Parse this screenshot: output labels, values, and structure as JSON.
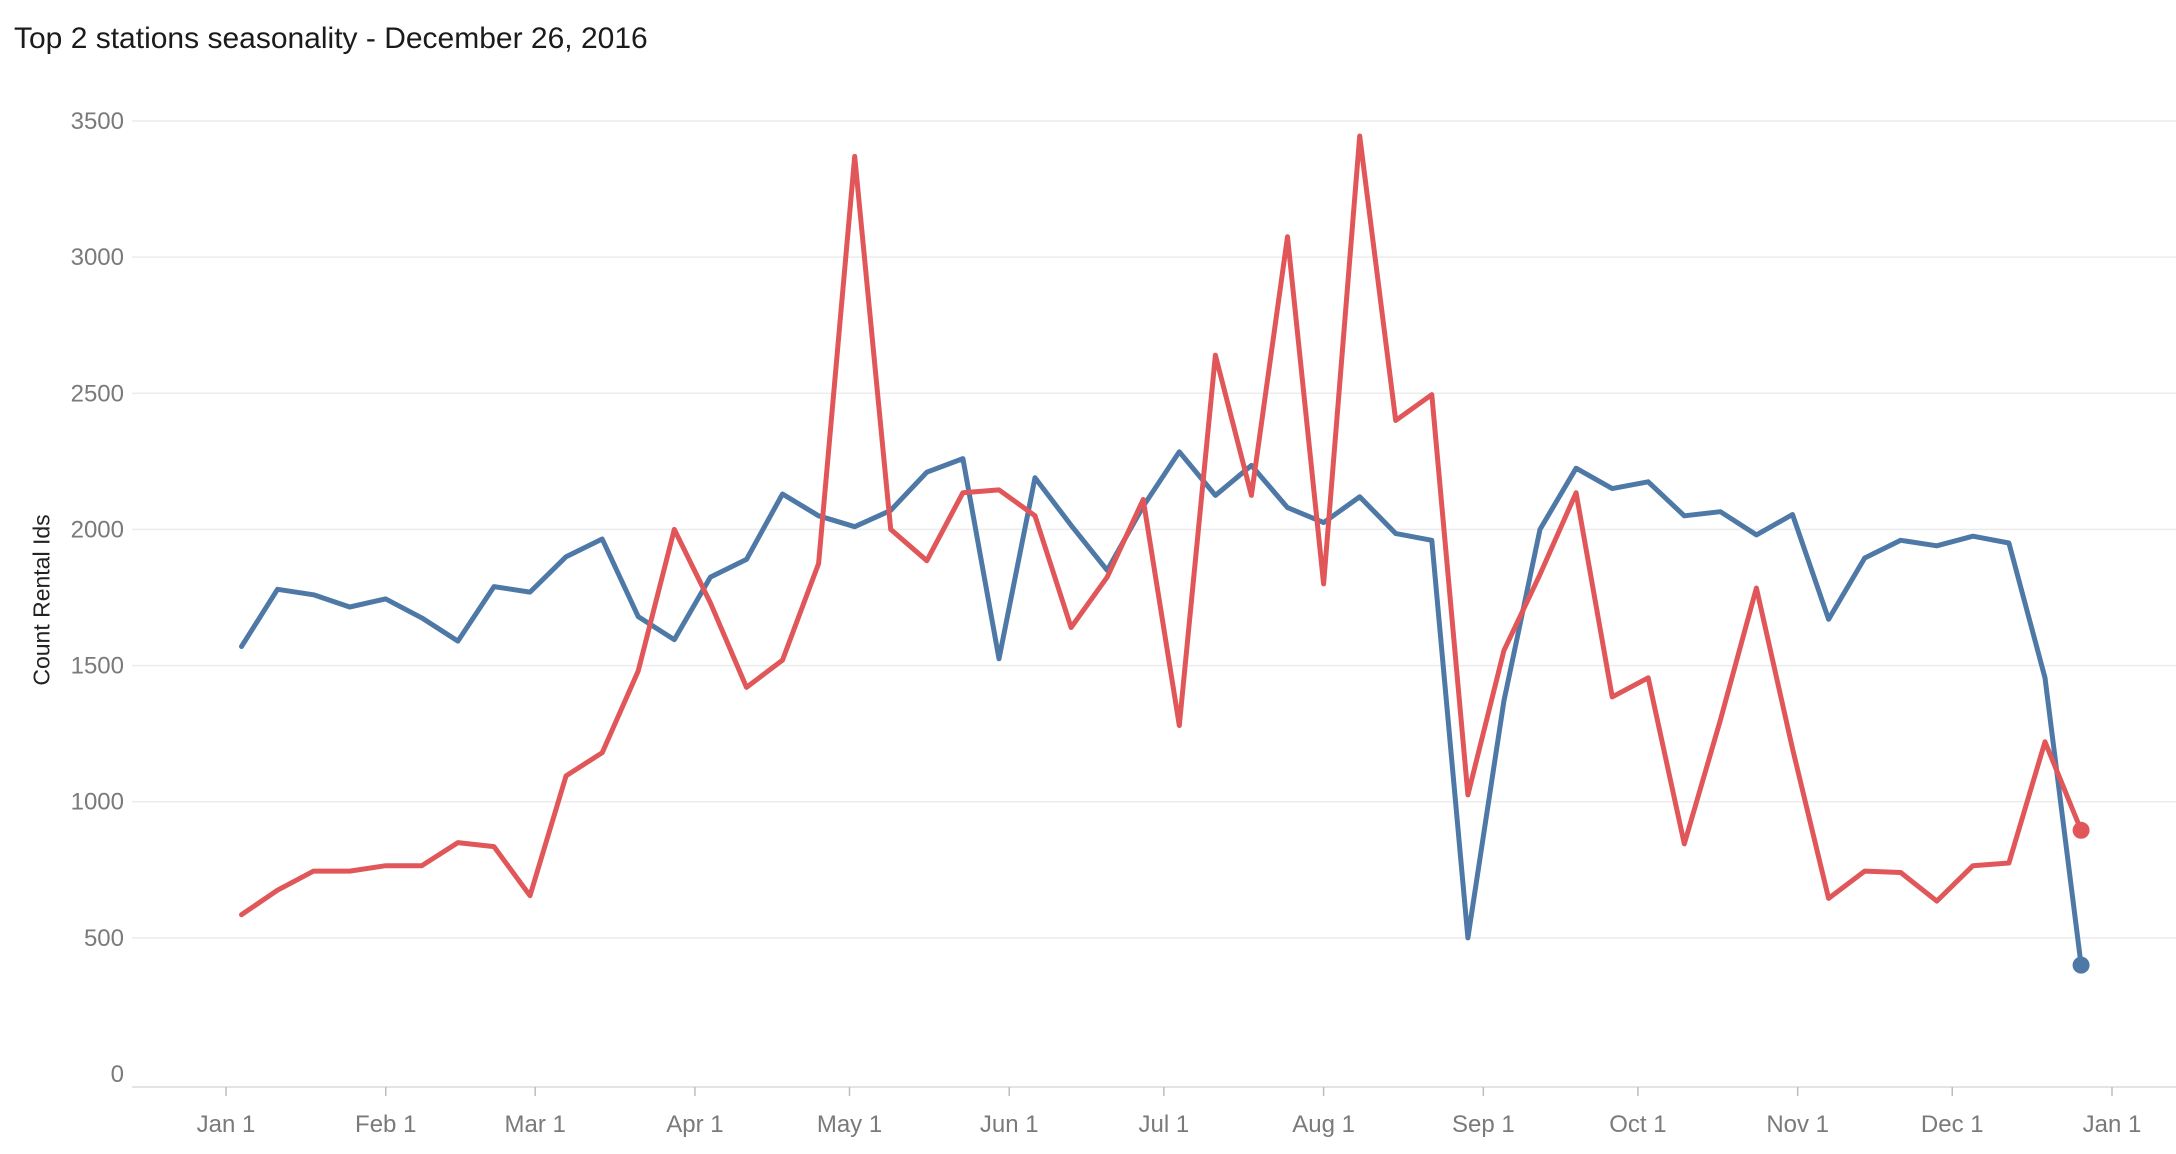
{
  "chart_data": {
    "type": "line",
    "title": "Top 2 stations seasonality - December 26, 2016",
    "ylabel": "Count Rental Ids",
    "xlabel": "",
    "ylim": [
      0,
      3500
    ],
    "yticks": [
      0,
      500,
      1000,
      1500,
      2000,
      2500,
      3000,
      3500
    ],
    "xticks": [
      {
        "date": "2016-01-01",
        "label": "Jan 1"
      },
      {
        "date": "2016-02-01",
        "label": "Feb 1"
      },
      {
        "date": "2016-03-01",
        "label": "Mar 1"
      },
      {
        "date": "2016-04-01",
        "label": "Apr 1"
      },
      {
        "date": "2016-05-01",
        "label": "May 1"
      },
      {
        "date": "2016-06-01",
        "label": "Jun 1"
      },
      {
        "date": "2016-07-01",
        "label": "Jul 1"
      },
      {
        "date": "2016-08-01",
        "label": "Aug 1"
      },
      {
        "date": "2016-09-01",
        "label": "Sep 1"
      },
      {
        "date": "2016-10-01",
        "label": "Oct 1"
      },
      {
        "date": "2016-11-01",
        "label": "Nov 1"
      },
      {
        "date": "2016-12-01",
        "label": "Dec 1"
      },
      {
        "date": "2017-01-01",
        "label": "Jan 1"
      }
    ],
    "grid": true,
    "x": [
      "2016-01-04",
      "2016-01-11",
      "2016-01-18",
      "2016-01-25",
      "2016-02-01",
      "2016-02-08",
      "2016-02-15",
      "2016-02-22",
      "2016-02-29",
      "2016-03-07",
      "2016-03-14",
      "2016-03-21",
      "2016-03-28",
      "2016-04-04",
      "2016-04-11",
      "2016-04-18",
      "2016-04-25",
      "2016-05-02",
      "2016-05-09",
      "2016-05-16",
      "2016-05-23",
      "2016-05-30",
      "2016-06-06",
      "2016-06-13",
      "2016-06-20",
      "2016-06-27",
      "2016-07-04",
      "2016-07-11",
      "2016-07-18",
      "2016-07-25",
      "2016-08-01",
      "2016-08-08",
      "2016-08-15",
      "2016-08-22",
      "2016-08-29",
      "2016-09-05",
      "2016-09-12",
      "2016-09-19",
      "2016-09-26",
      "2016-10-03",
      "2016-10-10",
      "2016-10-17",
      "2016-10-24",
      "2016-10-31",
      "2016-11-07",
      "2016-11-14",
      "2016-11-21",
      "2016-11-28",
      "2016-12-05",
      "2016-12-12",
      "2016-12-19",
      "2016-12-26"
    ],
    "series": [
      {
        "color": "#4e79a7",
        "values": [
          1570,
          1780,
          1760,
          1715,
          1745,
          1675,
          1590,
          1790,
          1770,
          1900,
          1965,
          1680,
          1595,
          1825,
          1890,
          2130,
          2050,
          2010,
          2070,
          2210,
          2260,
          1525,
          2190,
          2015,
          1850,
          2085,
          2285,
          2125,
          2235,
          2080,
          2025,
          2120,
          1985,
          1960,
          500,
          1370,
          2000,
          2225,
          2150,
          2175,
          2050,
          2065,
          1980,
          2055,
          1670,
          1895,
          1960,
          1940,
          1975,
          1950,
          1455,
          400
        ]
      },
      {
        "color": "#e15759",
        "values": [
          585,
          675,
          745,
          745,
          765,
          765,
          850,
          835,
          655,
          1095,
          1180,
          1480,
          2000,
          1730,
          1420,
          1520,
          1875,
          3370,
          2000,
          1885,
          2135,
          2145,
          2050,
          1640,
          1825,
          2110,
          1280,
          2640,
          2125,
          3075,
          1800,
          3445,
          2400,
          2495,
          1025,
          1555,
          1835,
          2135,
          1385,
          1455,
          845,
          1300,
          1785,
          1195,
          645,
          745,
          740,
          635,
          765,
          775,
          1220,
          895
        ]
      }
    ]
  }
}
